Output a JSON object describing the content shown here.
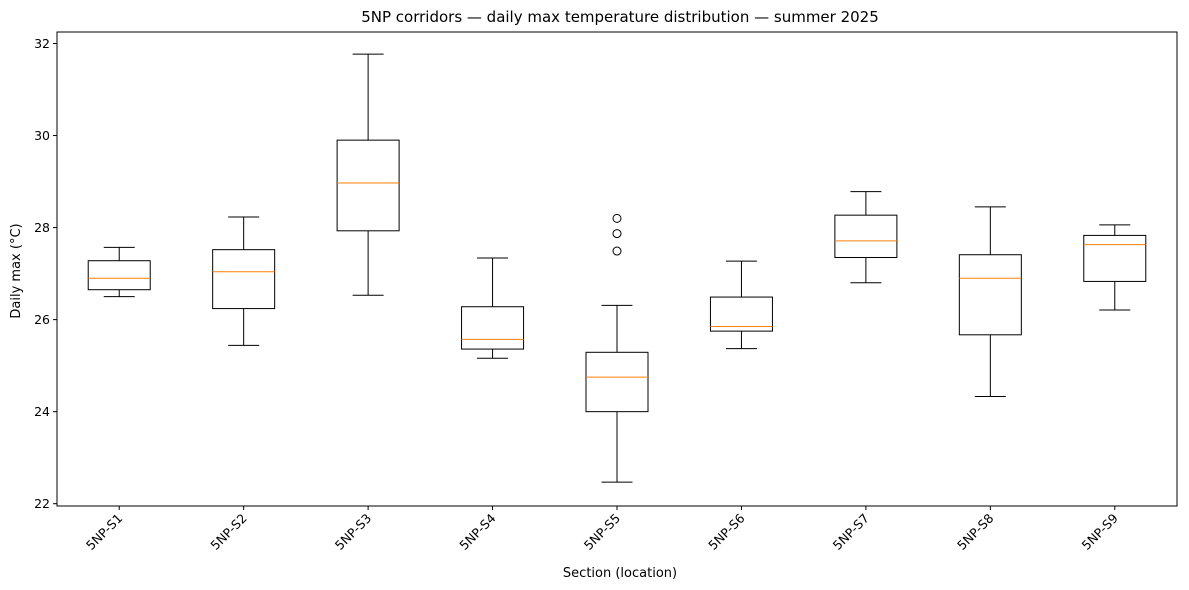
{
  "chart_data": {
    "type": "box",
    "title": "5NP corridors — daily max temperature distribution — summer 2025",
    "xlabel": "Section (location)",
    "ylabel": "Daily max (°C)",
    "ylim": [
      21.95,
      32.25
    ],
    "yticks": [
      22,
      24,
      26,
      28,
      30,
      32
    ],
    "grid": false,
    "legend": "none",
    "colors": {
      "box": "#000000",
      "median": "#ff7f0e",
      "outlier": "#000000"
    },
    "categories": [
      "5NP-S1",
      "5NP-S2",
      "5NP-S3",
      "5NP-S4",
      "5NP-S5",
      "5NP-S6",
      "5NP-S7",
      "5NP-S8",
      "5NP-S9"
    ],
    "boxes": [
      {
        "whisker_low": 26.5,
        "q1": 26.65,
        "median": 26.9,
        "q3": 27.28,
        "whisker_high": 27.57,
        "outliers": []
      },
      {
        "whisker_low": 25.44,
        "q1": 26.24,
        "median": 27.04,
        "q3": 27.52,
        "whisker_high": 28.23,
        "outliers": []
      },
      {
        "whisker_low": 26.53,
        "q1": 27.93,
        "median": 28.97,
        "q3": 29.9,
        "whisker_high": 31.77,
        "outliers": []
      },
      {
        "whisker_low": 25.16,
        "q1": 25.36,
        "median": 25.57,
        "q3": 26.28,
        "whisker_high": 27.34,
        "outliers": []
      },
      {
        "whisker_low": 22.47,
        "q1": 24.0,
        "median": 24.75,
        "q3": 25.29,
        "whisker_high": 26.31,
        "outliers": [
          27.49,
          27.87,
          28.2
        ]
      },
      {
        "whisker_low": 25.37,
        "q1": 25.75,
        "median": 25.85,
        "q3": 26.49,
        "whisker_high": 27.27,
        "outliers": []
      },
      {
        "whisker_low": 26.8,
        "q1": 27.35,
        "median": 27.71,
        "q3": 28.27,
        "whisker_high": 28.78,
        "outliers": []
      },
      {
        "whisker_low": 24.33,
        "q1": 25.67,
        "median": 26.9,
        "q3": 27.41,
        "whisker_high": 28.45,
        "outliers": []
      },
      {
        "whisker_low": 26.21,
        "q1": 26.83,
        "median": 27.63,
        "q3": 27.83,
        "whisker_high": 28.06,
        "outliers": []
      }
    ]
  }
}
